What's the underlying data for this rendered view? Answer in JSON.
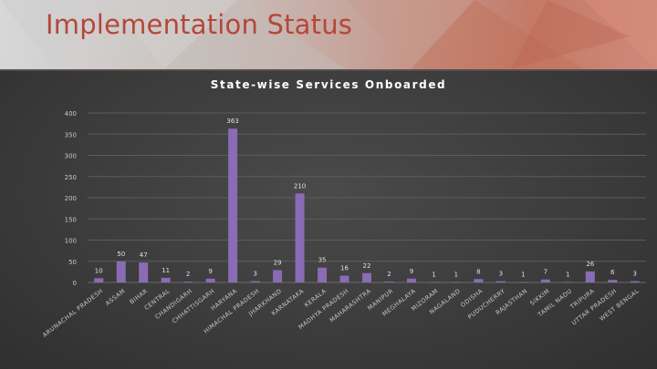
{
  "slide": {
    "title": "Implementation Status"
  },
  "colors": {
    "bar": "#8a6bb5",
    "title": "#b4473a",
    "grid": "#5c5c5c",
    "text": "#c8c8c8"
  },
  "chart_data": {
    "type": "bar",
    "title": "State-wise Services Onboarded",
    "xlabel": "",
    "ylabel": "",
    "ylim": [
      0,
      400
    ],
    "yticks": [
      0,
      50,
      100,
      150,
      200,
      250,
      300,
      350,
      400
    ],
    "grid": true,
    "legend": "none",
    "categories": [
      "ARUNACHAL PRADESH",
      "ASSAM",
      "BIHAR",
      "CENTRAL",
      "CHANDIGARH",
      "CHHATTISGARH",
      "HARYANA",
      "HIMACHAL PRADESH",
      "JHARKHAND",
      "KARNATAKA",
      "KERALA",
      "MADHYA PRADESH",
      "MAHARASHTRA",
      "MANIPUR",
      "MEGHALAYA",
      "MIZORAM",
      "NAGALAND",
      "ODISHA",
      "PUDUCHERRY",
      "RAJASTHAN",
      "SIKKIM",
      "TAMIL NADU",
      "TRIPURA",
      "UTTAR PRADESH",
      "WEST BENGAL"
    ],
    "values": [
      10,
      50,
      47,
      11,
      2,
      9,
      363,
      3,
      29,
      210,
      35,
      16,
      22,
      2,
      9,
      1,
      1,
      8,
      3,
      1,
      7,
      1,
      26,
      6,
      3
    ]
  }
}
